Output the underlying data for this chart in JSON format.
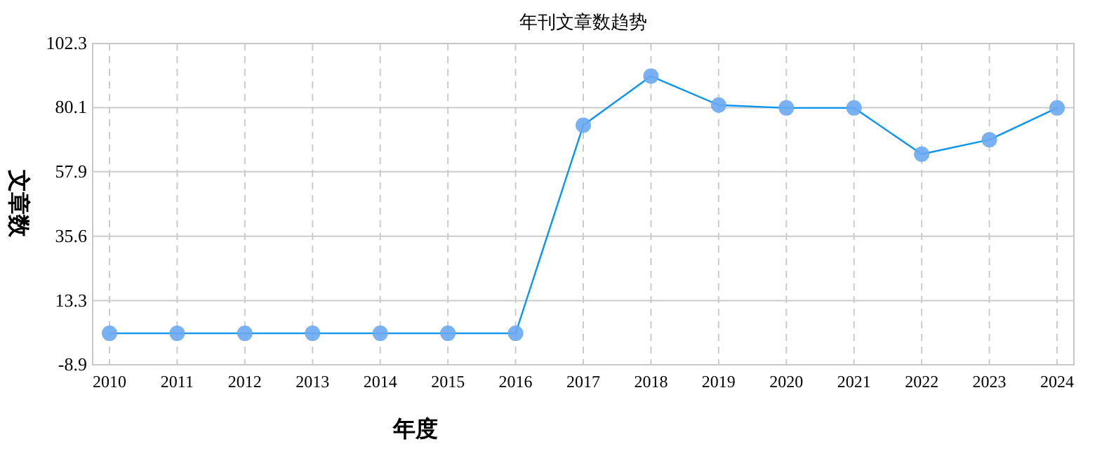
{
  "chart_data": {
    "type": "line",
    "title": "年刊文章数趋势",
    "xlabel": "年度",
    "ylabel": "文章数",
    "categories": [
      "2010",
      "2011",
      "2012",
      "2013",
      "2014",
      "2015",
      "2016",
      "2017",
      "2018",
      "2019",
      "2020",
      "2021",
      "2022",
      "2023",
      "2024"
    ],
    "series": [
      {
        "color": "#0a96f0",
        "values": [
          2,
          2,
          2,
          2,
          2,
          2,
          2,
          74,
          91,
          81,
          80,
          80,
          64,
          69,
          80
        ]
      }
    ],
    "ylim": [
      -8.9,
      102.3
    ],
    "yticks": [
      -8.9,
      13.3,
      35.6,
      57.9,
      80.1,
      102.3
    ],
    "grid": true,
    "marker": "circle",
    "line_style": "solid"
  }
}
